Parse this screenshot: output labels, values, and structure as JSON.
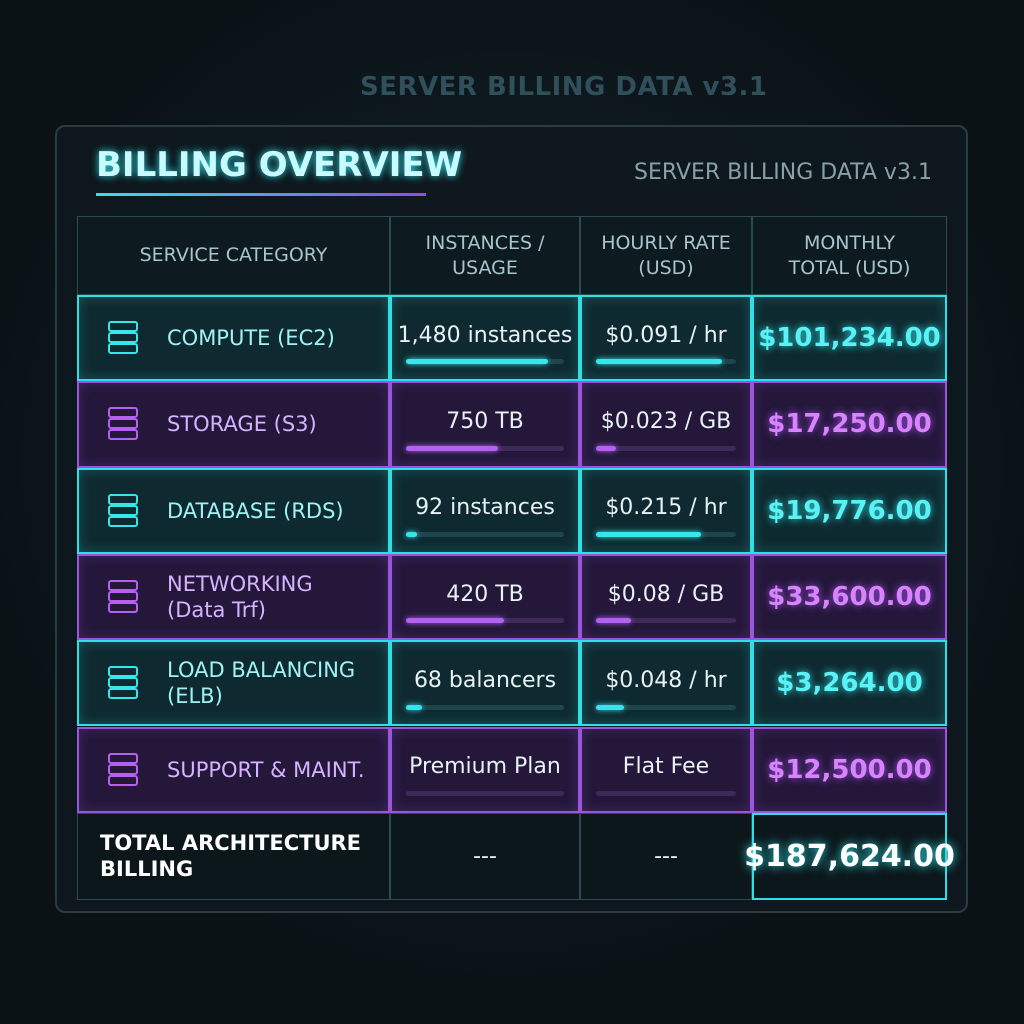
{
  "background": {
    "title": "SERVER BILLING DATA v3.1"
  },
  "header": {
    "title": "BILLING OVERVIEW",
    "subtitle": "SERVER BILLING DATA v3.1"
  },
  "table": {
    "columns": [
      "SERVICE CATEGORY",
      "INSTANCES /\nUSAGE",
      "HOURLY RATE\n(USD)",
      "MONTHLY\nTOTAL (USD)"
    ],
    "rows": [
      [
        "COMPUTE (EC2)",
        "1,480 instances",
        "$0.091 / hr",
        "$101,234.00"
      ],
      [
        "STORAGE (S3)",
        "750 TB",
        "$0.023 / GB",
        "$17,250.00"
      ],
      [
        "DATABASE (RDS)",
        "92 instances",
        "$0.215 / hr",
        "$19,776.00"
      ],
      [
        "NETWORKING\n(Data Trf)",
        "420 TB",
        "$0.08 / GB",
        "$33,600.00"
      ],
      [
        "LOAD BALANCING\n(ELB)",
        "68 balancers",
        "$0.048 / hr",
        "$3,264.00"
      ],
      [
        "SUPPORT & MAINT.",
        "Premium Plan",
        "Flat Fee",
        "$12,500.00"
      ]
    ],
    "total": [
      "TOTAL ARCHITECTURE\nBILLING",
      "---",
      "---",
      "$187,624.00"
    ]
  }
}
